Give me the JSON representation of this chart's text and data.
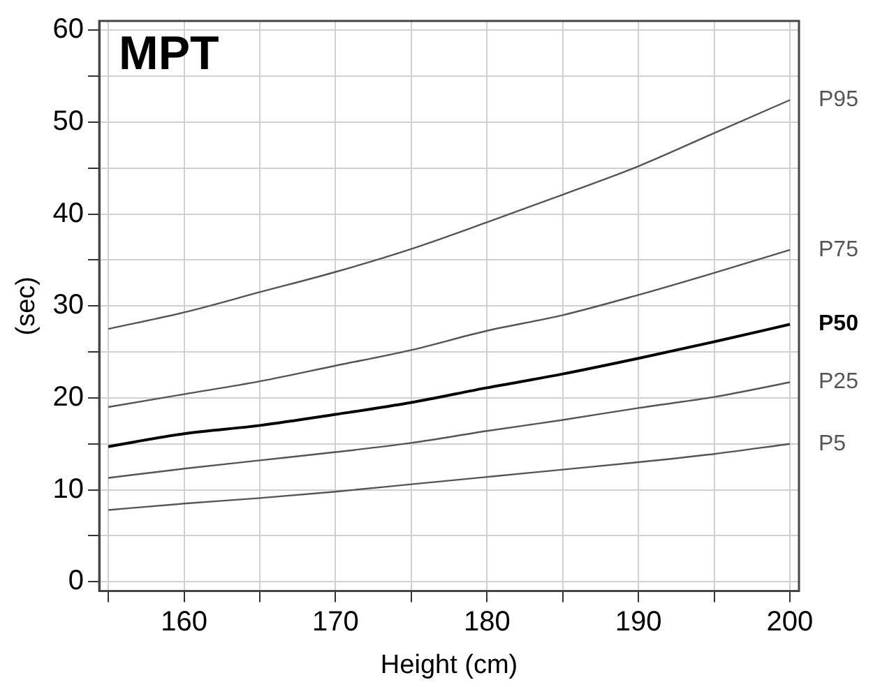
{
  "chart_data": {
    "type": "line",
    "title": "MPT",
    "xlabel": "Height (cm)",
    "ylabel": "(sec)",
    "x": [
      155,
      160,
      165,
      170,
      175,
      180,
      185,
      190,
      195,
      200
    ],
    "xlim": [
      154.4,
      200.6
    ],
    "xticks": [
      {
        "value": 155,
        "label": null
      },
      160,
      {
        "value": 165,
        "label": null
      },
      170,
      {
        "value": 175,
        "label": null
      },
      180,
      {
        "value": 185,
        "label": null
      },
      190,
      {
        "value": 195,
        "label": null
      },
      200
    ],
    "ylim": [
      -1,
      61
    ],
    "yticks": [
      0,
      {
        "value": 5,
        "label": null
      },
      10,
      {
        "value": 15,
        "label": null
      },
      20,
      {
        "value": 25,
        "label": null
      },
      30,
      {
        "value": 35,
        "label": null
      },
      40,
      {
        "value": 45,
        "label": null
      },
      50,
      {
        "value": 55,
        "label": null
      },
      60
    ],
    "grid": true,
    "legend": false,
    "marker": "none",
    "line_style": "solid",
    "series": [
      {
        "name": "P95",
        "color": "#555555",
        "values": [
          27.5,
          29.3,
          31.5,
          33.7,
          36.2,
          39.1,
          42.1,
          45.2,
          48.8,
          52.4
        ]
      },
      {
        "name": "P75",
        "color": "#555555",
        "values": [
          19,
          20.4,
          21.8,
          23.5,
          25.2,
          27.3,
          29,
          31.2,
          33.6,
          36.1
        ]
      },
      {
        "name": "P50",
        "color": "#000000",
        "values": [
          14.7,
          16.1,
          17,
          18.2,
          19.5,
          21.1,
          22.6,
          24.3,
          26.1,
          28
        ]
      },
      {
        "name": "P25",
        "color": "#555555",
        "values": [
          11.3,
          12.3,
          13.2,
          14.1,
          15.1,
          16.4,
          17.6,
          18.9,
          20.1,
          21.7
        ]
      },
      {
        "name": "P5",
        "color": "#555555",
        "values": [
          7.8,
          8.5,
          9.1,
          9.8,
          10.6,
          11.4,
          12.2,
          13,
          13.9,
          15
        ]
      }
    ]
  }
}
